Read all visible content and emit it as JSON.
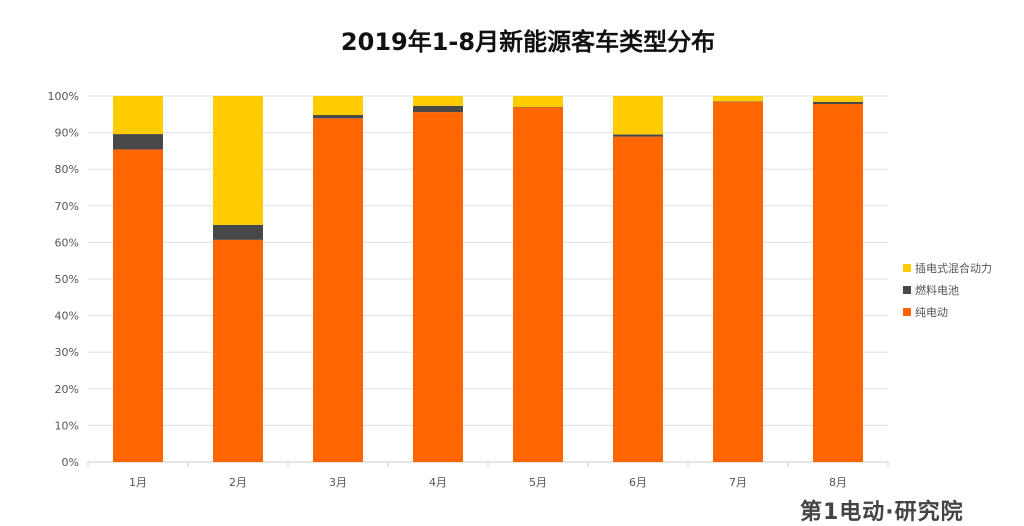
{
  "chart_data": {
    "type": "bar",
    "stacked": true,
    "title": "2019年1-8月新能源客车类型分布",
    "categories": [
      "1月",
      "2月",
      "3月",
      "4月",
      "5月",
      "6月",
      "7月",
      "8月"
    ],
    "series": [
      {
        "name": "纯电动",
        "color": "#ff6600",
        "values": [
          85.4,
          60.7,
          93.9,
          95.6,
          96.9,
          88.9,
          98.4,
          97.8
        ]
      },
      {
        "name": "燃料电池",
        "color": "#484848",
        "values": [
          4.2,
          4.1,
          0.9,
          1.7,
          0.1,
          0.6,
          0.1,
          0.6
        ]
      },
      {
        "name": "插电式混合动力",
        "color": "#ffcc00",
        "values": [
          10.4,
          35.2,
          5.2,
          2.7,
          3.0,
          10.5,
          1.5,
          1.6
        ]
      }
    ],
    "yticks": [
      "0%",
      "10%",
      "20%",
      "30%",
      "40%",
      "50%",
      "60%",
      "70%",
      "80%",
      "90%",
      "100%"
    ],
    "ylim": [
      0,
      100
    ],
    "grid": true,
    "legend": "right"
  },
  "watermark": "第1电动·研究院"
}
